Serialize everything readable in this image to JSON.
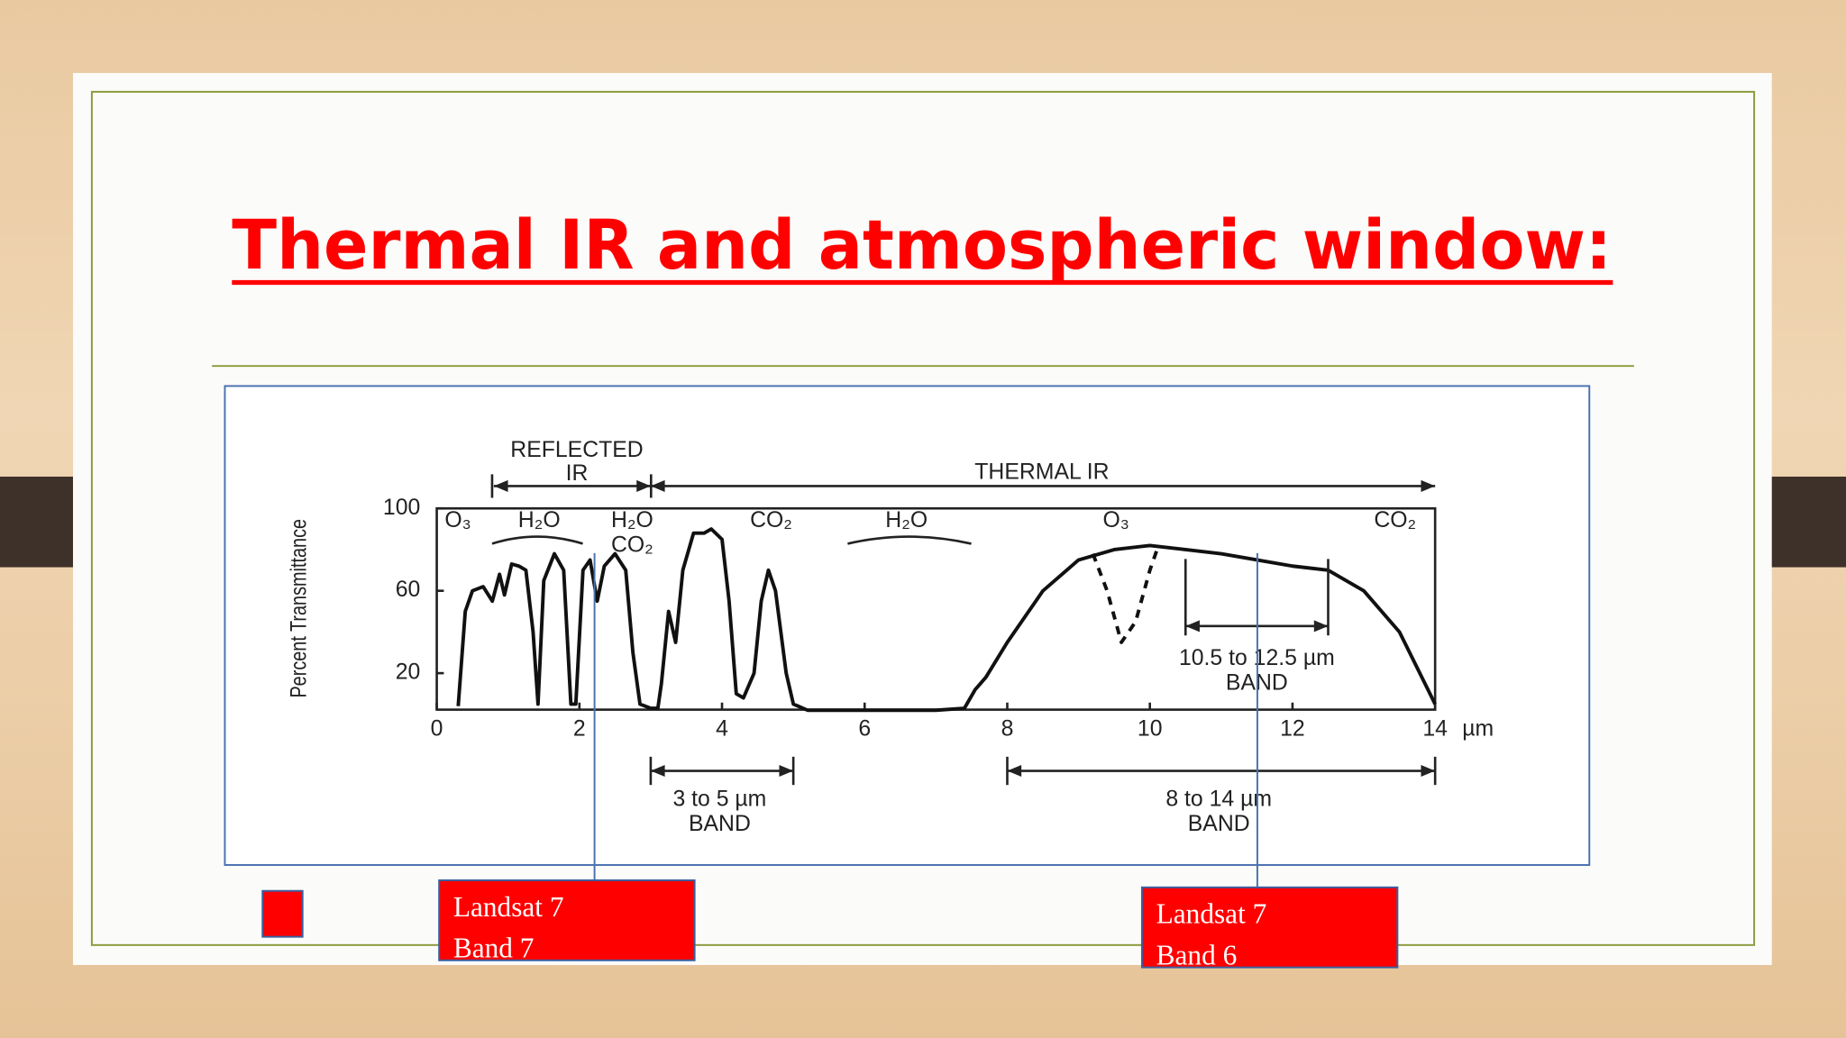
{
  "slide": {
    "title": "Thermal IR and atmospheric window:",
    "callouts": [
      {
        "lines": [
          "Landsat 7",
          "Band 7"
        ]
      },
      {
        "lines": [
          "Landsat 7",
          "Band 6"
        ]
      }
    ]
  },
  "chart_data": {
    "type": "line",
    "ylabel": "Percent Transmittance",
    "xlabel": "µm",
    "xlim": [
      0,
      14
    ],
    "ylim": [
      0,
      100
    ],
    "xticks": [
      0,
      2,
      4,
      6,
      8,
      10,
      12,
      14
    ],
    "yticks": [
      20,
      60,
      100
    ],
    "grid": false,
    "series": [
      {
        "color": "#111111",
        "dashed": false,
        "x": [
          0.3,
          0.4,
          0.5,
          0.65,
          0.78,
          0.88,
          0.95,
          1.05,
          1.15,
          1.25,
          1.35,
          1.42,
          1.5,
          1.65,
          1.78,
          1.88,
          1.95,
          2.05,
          2.15,
          2.25,
          2.35,
          2.5,
          2.65,
          2.75,
          2.85,
          3.0,
          3.1,
          3.15,
          3.25,
          3.35,
          3.45,
          3.6,
          3.75,
          3.85,
          4.0,
          4.1,
          4.2,
          4.3,
          4.45,
          4.55,
          4.65,
          4.75,
          4.9,
          5.0,
          5.2,
          6,
          7,
          7.4,
          7.55,
          7.7,
          8.0,
          8.5,
          9.0,
          9.5,
          10,
          10.5,
          11,
          12,
          12.5,
          13,
          13.5,
          14
        ],
        "values": [
          4,
          50,
          60,
          62,
          55,
          68,
          58,
          73,
          72,
          70,
          40,
          5,
          65,
          78,
          70,
          5,
          5,
          70,
          75,
          55,
          72,
          78,
          70,
          30,
          5,
          3,
          3,
          15,
          50,
          35,
          70,
          88,
          88,
          90,
          85,
          55,
          10,
          8,
          20,
          55,
          70,
          60,
          20,
          5,
          2,
          2,
          2,
          3,
          12,
          18,
          35,
          60,
          75,
          80,
          82,
          80,
          78,
          72,
          70,
          60,
          40,
          5
        ]
      },
      {
        "color": "#111111",
        "dashed": true,
        "x": [
          9.2,
          9.4,
          9.6,
          9.8,
          10.0,
          10.1
        ],
        "values": [
          78,
          60,
          35,
          45,
          70,
          80
        ]
      }
    ],
    "regions": [
      {
        "from": 0.8,
        "to": 3,
        "label": [
          "REFLECTED",
          "IR"
        ]
      },
      {
        "from": 3,
        "to": 14,
        "label": [
          "THERMAL IR"
        ]
      }
    ],
    "absorbers": [
      "O₃",
      "H₂O",
      "H₂O",
      "CO₂",
      "CO₂",
      "H₂O",
      "O₃",
      "CO₂"
    ],
    "bands": [
      {
        "from": 10.5,
        "to": 12.5,
        "label": [
          "10.5 to 12.5 µm",
          "BAND"
        ]
      },
      {
        "from": 3,
        "to": 5,
        "label": [
          "3 to 5 µm",
          "BAND"
        ]
      },
      {
        "from": 8,
        "to": 14,
        "label": [
          "8 to 14 µm",
          "BAND"
        ]
      }
    ]
  }
}
